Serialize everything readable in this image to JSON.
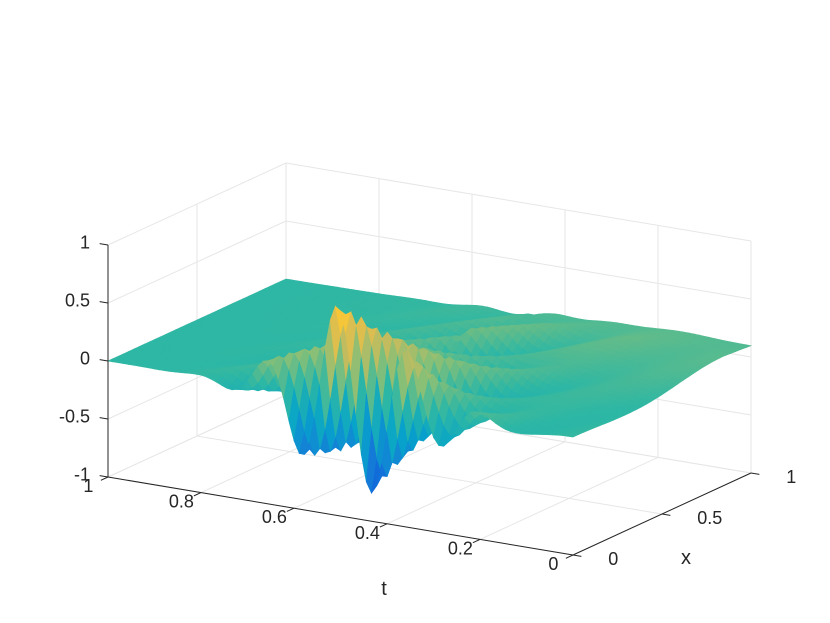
{
  "chart_data": {
    "type": "surface",
    "title": "",
    "xlabel": "t",
    "ylabel": "x",
    "zlabel": "",
    "t_range": [
      0,
      1
    ],
    "x_range": [
      0,
      1
    ],
    "z_range": [
      -1,
      1
    ],
    "t_ticks": [
      "0",
      "0.2",
      "0.4",
      "0.6",
      "0.8",
      "1"
    ],
    "x_ticks": [
      "0",
      "0.5",
      "1"
    ],
    "z_ticks": [
      "-1",
      "-0.5",
      "0",
      "0.5",
      "1"
    ],
    "t_tick_values": [
      0,
      0.2,
      0.4,
      0.6,
      0.8,
      1
    ],
    "x_tick_values": [
      0,
      0.5,
      1
    ],
    "z_tick_values": [
      -1,
      -0.5,
      0,
      0.5,
      1
    ],
    "grid": true,
    "colormap": [
      "#352a87",
      "#0f5cdd",
      "#1481d6",
      "#06a4ca",
      "#2eb7a4",
      "#87bf77",
      "#d1bb59",
      "#fec832",
      "#f9fb0e"
    ],
    "wave_packet": {
      "peak_t": 0.47,
      "peak_x": 0.06,
      "max_z": 0.72,
      "min_z": -0.98,
      "ridge_heights": [
        0.72,
        0.62,
        0.52,
        0.45,
        0.38,
        0.33
      ]
    }
  }
}
